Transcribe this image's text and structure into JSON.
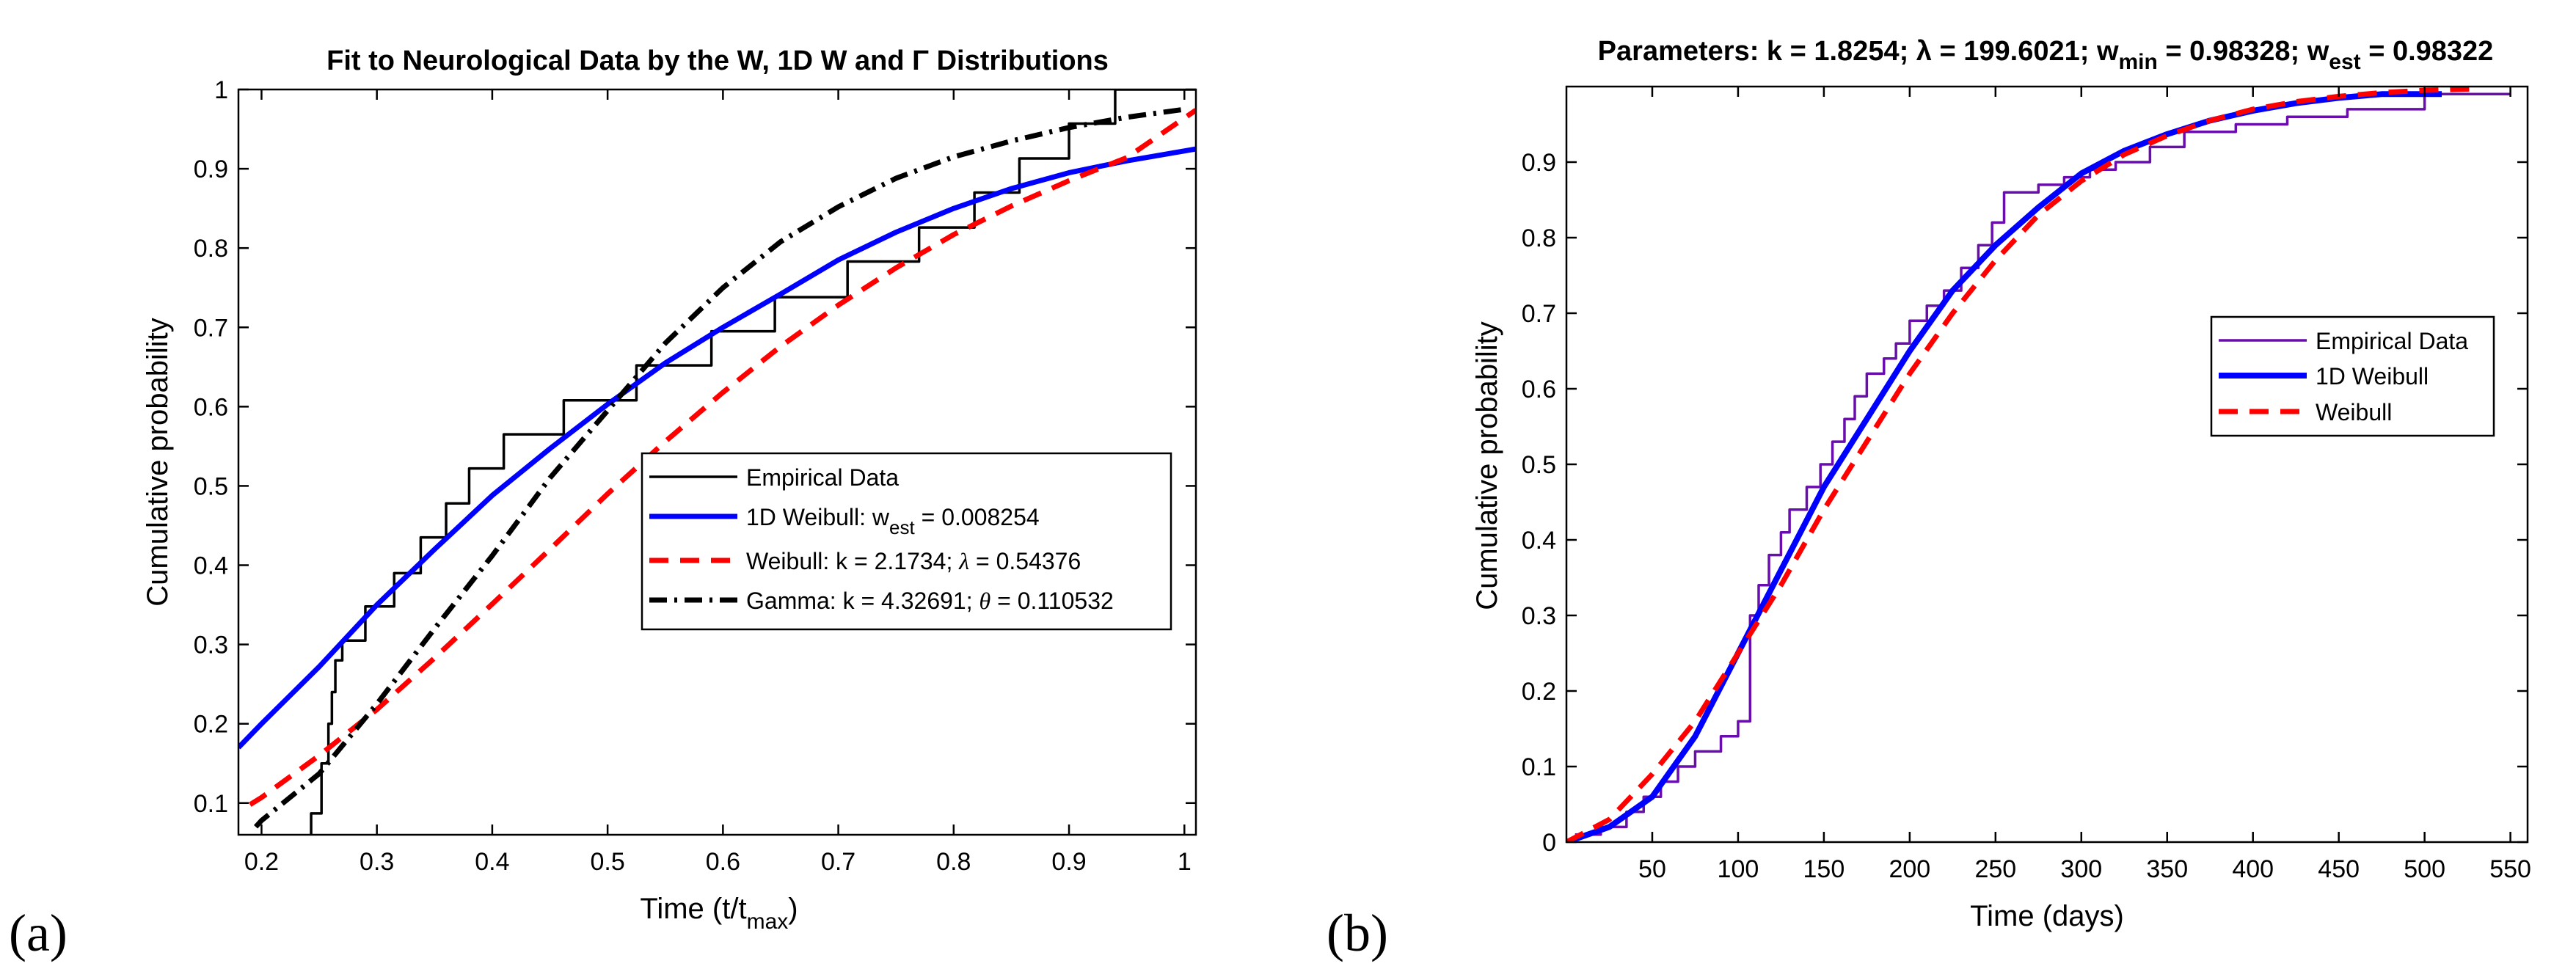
{
  "chart_data": [
    {
      "type": "line",
      "panel_label": "(a)",
      "title": "Fit to Neurological Data by the W, 1D W and Γ Distributions",
      "xlabel": "Time (t/t",
      "xlabel_sub": "max",
      "xlabel_close": ")",
      "ylabel": "Cumulative probability",
      "xlim": [
        0.18,
        1.01
      ],
      "ylim": [
        0.06,
        1.0
      ],
      "xticks": [
        0.2,
        0.3,
        0.4,
        0.5,
        0.6,
        0.7,
        0.8,
        0.9,
        1
      ],
      "xtick_labels": [
        "0.2",
        "0.3",
        "0.4",
        "0.5",
        "0.6",
        "0.7",
        "0.8",
        "0.9",
        "1"
      ],
      "yticks": [
        0.1,
        0.2,
        0.3,
        0.4,
        0.5,
        0.6,
        0.7,
        0.8,
        0.9,
        1
      ],
      "ytick_labels": [
        "0.1",
        "0.2",
        "0.3",
        "0.4",
        "0.5",
        "0.6",
        "0.7",
        "0.8",
        "0.9",
        "1"
      ],
      "legend_position": "center-right",
      "series": [
        {
          "name": "Empirical Data",
          "legend": [
            "Empirical Data"
          ],
          "color": "#000000",
          "dash": "solid",
          "width": 3.5,
          "kind": "step",
          "x": [
            0.243,
            0.243,
            0.252,
            0.258,
            0.261,
            0.264,
            0.27,
            0.29,
            0.315,
            0.338,
            0.36,
            0.38,
            0.402,
            0.41,
            0.462,
            0.5,
            0.525,
            0.53,
            0.59,
            0.645,
            0.708,
            0.77,
            0.818,
            0.857,
            0.9,
            0.94,
            1.01
          ],
          "y": [
            0.06,
            0.087,
            0.15,
            0.2,
            0.24,
            0.28,
            0.305,
            0.348,
            0.39,
            0.435,
            0.478,
            0.522,
            0.522,
            0.565,
            0.608,
            0.608,
            0.652,
            0.652,
            0.695,
            0.738,
            0.783,
            0.826,
            0.87,
            0.913,
            0.957,
            1.0,
            1.0
          ]
        },
        {
          "name": "1D Weibull",
          "legend": [
            "1D Weibull: w",
            "est",
            " = 0.008254"
          ],
          "color": "#0000ff",
          "dash": "solid",
          "width": 7,
          "kind": "line",
          "x": [
            0.18,
            0.2,
            0.25,
            0.3,
            0.35,
            0.4,
            0.45,
            0.5,
            0.55,
            0.6,
            0.65,
            0.7,
            0.75,
            0.8,
            0.85,
            0.9,
            0.95,
            1.01
          ],
          "y": [
            0.17,
            0.2,
            0.272,
            0.35,
            0.42,
            0.488,
            0.547,
            0.603,
            0.655,
            0.7,
            0.742,
            0.785,
            0.82,
            0.85,
            0.875,
            0.895,
            0.91,
            0.925
          ]
        },
        {
          "name": "Weibull",
          "legend": [
            "Weibull: k = 2.1734; ",
            "λ",
            " = 0.54376"
          ],
          "color": "#ff0000",
          "dash": "26 16",
          "width": 7,
          "kind": "line",
          "x": [
            0.19,
            0.2,
            0.25,
            0.3,
            0.35,
            0.4,
            0.45,
            0.5,
            0.55,
            0.6,
            0.65,
            0.7,
            0.75,
            0.8,
            0.85,
            0.9,
            0.95,
            1.01
          ],
          "y": [
            0.098,
            0.107,
            0.16,
            0.218,
            0.283,
            0.351,
            0.42,
            0.49,
            0.556,
            0.618,
            0.676,
            0.728,
            0.775,
            0.817,
            0.853,
            0.885,
            0.914,
            0.974
          ]
        },
        {
          "name": "Gamma",
          "legend": [
            "Gamma: k = 4.32691; ",
            "θ",
            " = 0.110532"
          ],
          "color": "#000000",
          "dash": "24 10 4 10",
          "width": 7,
          "kind": "line",
          "x": [
            0.195,
            0.2,
            0.25,
            0.3,
            0.35,
            0.4,
            0.45,
            0.5,
            0.55,
            0.6,
            0.65,
            0.7,
            0.75,
            0.8,
            0.85,
            0.9,
            0.95,
            1.0
          ],
          "y": [
            0.07,
            0.078,
            0.137,
            0.225,
            0.32,
            0.412,
            0.51,
            0.595,
            0.68,
            0.75,
            0.808,
            0.852,
            0.888,
            0.915,
            0.935,
            0.952,
            0.965,
            0.975
          ]
        }
      ]
    },
    {
      "type": "line",
      "panel_label": "(b)",
      "title": "Parameters: k = 1.8254; λ = 199.6021; w",
      "title_sub1": "min",
      "title_mid": " = 0.98328; w",
      "title_sub2": "est",
      "title_end": " = 0.98322",
      "xlabel": "Time (days)",
      "ylabel": "Cumulative probability",
      "xlim": [
        0,
        560
      ],
      "ylim": [
        0,
        1.0
      ],
      "xticks": [
        50,
        100,
        150,
        200,
        250,
        300,
        350,
        400,
        450,
        500,
        550
      ],
      "xtick_labels": [
        "50",
        "100",
        "150",
        "200",
        "250",
        "300",
        "350",
        "400",
        "450",
        "500",
        "550"
      ],
      "yticks": [
        0,
        0.1,
        0.2,
        0.3,
        0.4,
        0.5,
        0.6,
        0.7,
        0.8,
        0.9
      ],
      "ytick_labels": [
        "0",
        "0.1",
        "0.2",
        "0.3",
        "0.4",
        "0.5",
        "0.6",
        "0.7",
        "0.8",
        "0.9"
      ],
      "legend_position": "right",
      "series": [
        {
          "name": "Empirical Data",
          "legend": [
            "Empirical Data"
          ],
          "color": "#6a0dad",
          "dash": "solid",
          "width": 3.5,
          "kind": "step",
          "x": [
            5,
            20,
            35,
            45,
            55,
            65,
            75,
            90,
            100,
            107,
            112,
            118,
            125,
            130,
            140,
            148,
            155,
            162,
            168,
            175,
            185,
            192,
            200,
            210,
            220,
            230,
            240,
            248,
            255,
            265,
            275,
            290,
            305,
            320,
            340,
            360,
            390,
            420,
            455,
            500,
            550
          ],
          "y": [
            0.01,
            0.02,
            0.04,
            0.06,
            0.08,
            0.1,
            0.12,
            0.14,
            0.16,
            0.3,
            0.34,
            0.38,
            0.41,
            0.44,
            0.47,
            0.5,
            0.53,
            0.56,
            0.59,
            0.62,
            0.64,
            0.66,
            0.69,
            0.71,
            0.73,
            0.76,
            0.79,
            0.82,
            0.86,
            0.86,
            0.87,
            0.88,
            0.89,
            0.9,
            0.92,
            0.94,
            0.95,
            0.96,
            0.97,
            0.99,
            0.99
          ]
        },
        {
          "name": "1D Weibull",
          "legend": [
            "1D Weibull"
          ],
          "color": "#0000ff",
          "dash": "solid",
          "width": 8,
          "kind": "line",
          "x": [
            0,
            25,
            50,
            75,
            100,
            125,
            150,
            175,
            200,
            225,
            250,
            275,
            300,
            325,
            350,
            375,
            400,
            425,
            450,
            475,
            510
          ],
          "y": [
            0,
            0.02,
            0.06,
            0.14,
            0.25,
            0.36,
            0.47,
            0.56,
            0.65,
            0.73,
            0.79,
            0.84,
            0.885,
            0.915,
            0.937,
            0.955,
            0.968,
            0.978,
            0.985,
            0.99,
            0.99
          ]
        },
        {
          "name": "Weibull",
          "legend": [
            "Weibull"
          ],
          "color": "#ff0000",
          "dash": "26 16",
          "width": 7,
          "kind": "line",
          "x": [
            0,
            25,
            50,
            75,
            100,
            125,
            150,
            175,
            200,
            225,
            250,
            275,
            300,
            325,
            350,
            375,
            400,
            425,
            450,
            475,
            500,
            530
          ],
          "y": [
            0,
            0.03,
            0.09,
            0.16,
            0.25,
            0.34,
            0.44,
            0.53,
            0.62,
            0.7,
            0.77,
            0.83,
            0.875,
            0.91,
            0.935,
            0.955,
            0.97,
            0.98,
            0.987,
            0.992,
            0.995,
            0.997
          ]
        }
      ]
    }
  ]
}
